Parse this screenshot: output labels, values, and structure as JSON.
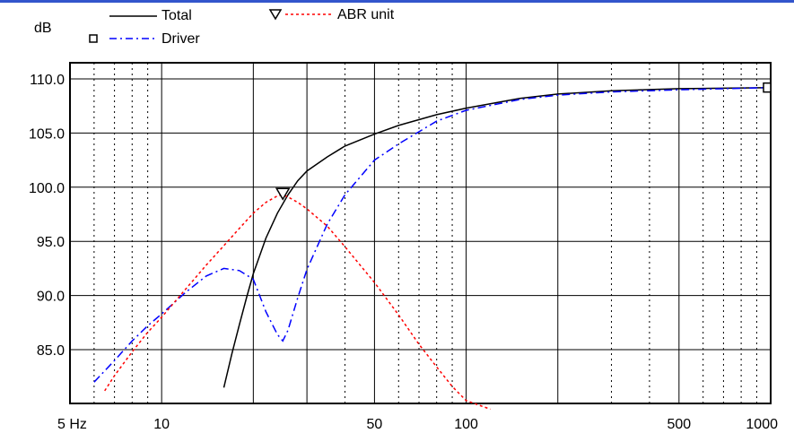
{
  "chart_data": {
    "type": "line",
    "ylabel": "dB",
    "x_scale": "log",
    "xlim": [
      5,
      1000
    ],
    "ylim": [
      80,
      110
    ],
    "x_ticks": [
      {
        "value": 5,
        "label": "5 Hz"
      },
      {
        "value": 10,
        "label": "10"
      },
      {
        "value": 50,
        "label": "50"
      },
      {
        "value": 100,
        "label": "100"
      },
      {
        "value": 500,
        "label": "500"
      },
      {
        "value": 1000,
        "label": "1000"
      }
    ],
    "y_ticks": [
      {
        "value": 110,
        "label": "110.0"
      },
      {
        "value": 105,
        "label": "105.0"
      },
      {
        "value": 100,
        "label": "100.0"
      },
      {
        "value": 95,
        "label": "95.0"
      },
      {
        "value": 90,
        "label": "90.0"
      },
      {
        "value": 85,
        "label": "85.0"
      }
    ],
    "grid": true,
    "legend_position": "top",
    "series": [
      {
        "name": "Total",
        "color": "#000000",
        "dash": "solid",
        "marker": "none",
        "x": [
          16,
          17,
          18,
          19,
          20,
          22,
          24,
          26,
          28,
          30,
          35,
          40,
          50,
          60,
          80,
          100,
          150,
          200,
          300,
          500,
          1000
        ],
        "y": [
          81.5,
          84.6,
          87.3,
          89.8,
          92.0,
          95.3,
          97.6,
          99.3,
          100.6,
          101.5,
          102.8,
          103.8,
          104.9,
          105.7,
          106.7,
          107.3,
          108.2,
          108.6,
          108.9,
          109.1,
          109.2
        ]
      },
      {
        "name": "Driver",
        "color": "#0000ff",
        "dash": "dashdot",
        "marker": "square",
        "x": [
          6,
          7,
          8,
          9,
          10,
          12,
          14,
          16,
          18,
          20,
          22,
          24,
          25,
          26,
          28,
          30,
          35,
          40,
          50,
          60,
          80,
          100,
          150,
          200,
          300,
          500,
          1000
        ],
        "y": [
          82.0,
          84.0,
          85.8,
          87.2,
          88.3,
          90.3,
          91.8,
          92.5,
          92.3,
          91.5,
          88.5,
          86.4,
          85.8,
          86.8,
          89.8,
          92.4,
          96.6,
          99.3,
          102.5,
          104.0,
          106.1,
          107.1,
          108.1,
          108.5,
          108.8,
          109.0,
          109.2
        ]
      },
      {
        "name": "ABR unit",
        "color": "#ff0000",
        "dash": "dotted",
        "marker": "triangle",
        "x": [
          6.5,
          7,
          8,
          9,
          10,
          12,
          14,
          16,
          18,
          20,
          22,
          24,
          25,
          26,
          28,
          30,
          35,
          40,
          50,
          60,
          70,
          80,
          90,
          100,
          120
        ],
        "y": [
          81.2,
          82.6,
          84.8,
          86.6,
          88.0,
          90.6,
          92.8,
          94.6,
          96.2,
          97.6,
          98.6,
          99.2,
          99.3,
          99.1,
          98.6,
          98.0,
          96.4,
          94.5,
          91.2,
          88.2,
          85.5,
          83.4,
          81.6,
          80.3,
          79.5
        ]
      }
    ]
  }
}
